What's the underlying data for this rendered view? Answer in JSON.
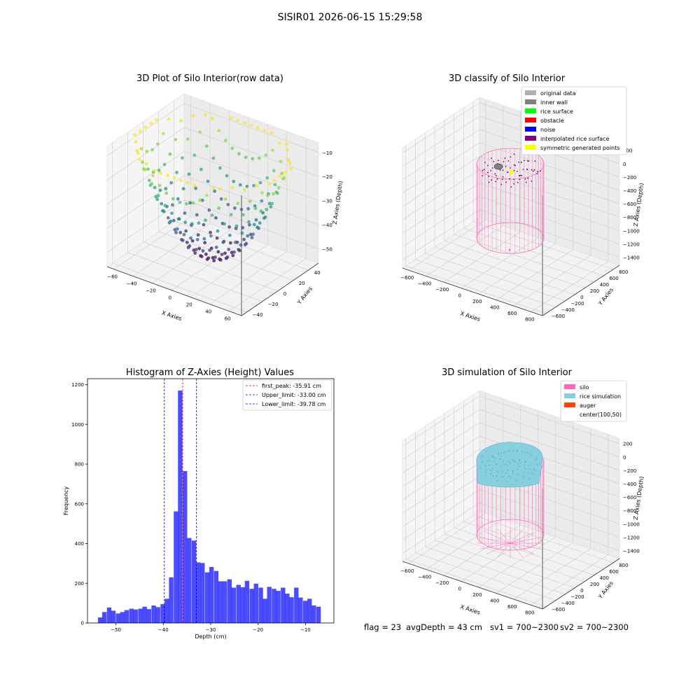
{
  "figure": {
    "suptitle": "SISIR01 2026-06-15 15:29:58",
    "status": {
      "flag": "flag = 23",
      "avg_depth": "avgDepth = 43 cm",
      "sv1": "sv1 = 700~2300",
      "sv2": "sv2 = 700~2300"
    }
  },
  "chart_data": [
    {
      "type": "scatter",
      "projection": "3d",
      "title": "3D Plot of Silo Interior(row data)",
      "xlabel": "X Axies",
      "ylabel": "Y Axies",
      "zlabel": "Z Axies (Depth)",
      "xticks": [
        "−60",
        "−40",
        "−20",
        "0",
        "20",
        "40",
        "60"
      ],
      "yticks": [
        "−40",
        "−20",
        "0",
        "20",
        "40"
      ],
      "zticks": [
        "−10",
        "−20",
        "−30",
        "−40",
        "−50"
      ],
      "xlim": [
        -60,
        60
      ],
      "ylim": [
        -40,
        40
      ],
      "zlim": [
        -55,
        -5
      ],
      "colormap": "viridis",
      "grid": true,
      "description_shape": "bowl-shaped point cloud, deepest near -52 cm, rim near -8 cm"
    },
    {
      "type": "scatter",
      "projection": "3d",
      "title": "3D classify of Silo Interior",
      "xlabel": "X Axies",
      "ylabel": "Y Axies",
      "zlabel": "Z Axies (Depth)",
      "xticks": [
        "−600",
        "−400",
        "−200",
        "0",
        "200",
        "400",
        "600",
        "800"
      ],
      "yticks": [
        "−600",
        "−400",
        "−200",
        "0",
        "200",
        "400",
        "600",
        "800"
      ],
      "zticks": [
        "200",
        "0",
        "−200",
        "−400",
        "−600",
        "−800",
        "−1000",
        "−1200",
        "−1400"
      ],
      "grid": true,
      "legend_position": "top-right",
      "legend": [
        {
          "label": "original data",
          "color": "#b0b0b0"
        },
        {
          "label": "inner wall",
          "color": "#808080"
        },
        {
          "label": "rice surface",
          "color": "#00ff00"
        },
        {
          "label": "obstacle",
          "color": "#ff0000"
        },
        {
          "label": "noise",
          "color": "#0000ff"
        },
        {
          "label": "interpolated rice surface",
          "color": "#800080"
        },
        {
          "label": "symmetric generated points",
          "color": "#ffff00"
        }
      ],
      "silo_color": "#ff69b4"
    },
    {
      "type": "bar",
      "title": "Histogram of Z-Axies (Height) Values",
      "xlabel": "Depth (cm)",
      "ylabel": "Frequency",
      "xlim": [
        -56,
        -4
      ],
      "ylim": [
        0,
        1230
      ],
      "xticks": [
        -50,
        -40,
        -30,
        -20,
        -10
      ],
      "xtick_labels": [
        "−50",
        "−40",
        "−30",
        "−20",
        "−10"
      ],
      "yticks": [
        0,
        200,
        400,
        600,
        800,
        1000,
        1200
      ],
      "bar_color": "#0000ff",
      "bin_width": 0.94,
      "bin_starts": [
        -53.8,
        -52.9,
        -51.9,
        -51.0,
        -50.0,
        -49.1,
        -48.2,
        -47.2,
        -46.3,
        -45.3,
        -44.4,
        -43.5,
        -42.5,
        -41.6,
        -40.6,
        -39.7,
        -38.8,
        -37.8,
        -36.9,
        -35.9,
        -35.0,
        -34.0,
        -33.1,
        -32.2,
        -31.2,
        -30.3,
        -29.3,
        -28.4,
        -27.5,
        -26.5,
        -25.6,
        -24.6,
        -23.7,
        -22.8,
        -21.8,
        -20.9,
        -19.9,
        -19.0,
        -18.1,
        -17.1,
        -16.2,
        -15.2,
        -14.3,
        -13.4,
        -12.4,
        -11.5,
        -10.5,
        -9.6,
        -8.7,
        -7.7,
        -6.8
      ],
      "values": [
        28,
        55,
        78,
        62,
        48,
        55,
        65,
        72,
        68,
        72,
        82,
        70,
        88,
        80,
        95,
        122,
        230,
        562,
        1170,
        765,
        428,
        415,
        305,
        302,
        255,
        282,
        262,
        210,
        210,
        220,
        178,
        192,
        180,
        212,
        172,
        198,
        178,
        122,
        182,
        172,
        162,
        178,
        148,
        130,
        178,
        128,
        112,
        122,
        88,
        82,
        0
      ],
      "reference_lines": [
        {
          "name": "first_peak: -35.91 cm",
          "x": -35.91,
          "color": "#ff0000"
        },
        {
          "name": "Upper_limit: -33.00 cm",
          "x": -33.0,
          "color": "#0000bb"
        },
        {
          "name": "Lower_limit: -39.78 cm",
          "x": -39.78,
          "color": "#0000bb"
        }
      ],
      "legend_position": "top-right"
    },
    {
      "type": "scatter",
      "projection": "3d",
      "title": "3D simulation of Silo Interior",
      "xlabel": "X Axies",
      "ylabel": "Y Axies",
      "zlabel": "Z Axies (Depth)",
      "xticks": [
        "−600",
        "−400",
        "−200",
        "0",
        "200",
        "400",
        "600",
        "800"
      ],
      "yticks": [
        "−600",
        "−400",
        "−200",
        "0",
        "200",
        "400",
        "600",
        "800"
      ],
      "zticks": [
        "200",
        "0",
        "−200",
        "−400",
        "−600",
        "−800",
        "−1000",
        "−1200",
        "−1400"
      ],
      "grid": true,
      "legend_position": "top-right",
      "legend": [
        {
          "label": "silo",
          "color": "#ff69b4"
        },
        {
          "label": "rice simulation",
          "color": "#87cedf"
        },
        {
          "label": "auger",
          "color": "#ff4500"
        },
        {
          "label": "center(100,50)",
          "color": "#ffffff"
        }
      ]
    }
  ]
}
